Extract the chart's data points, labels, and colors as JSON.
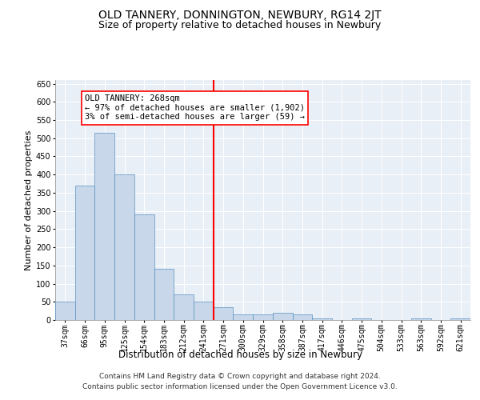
{
  "title": "OLD TANNERY, DONNINGTON, NEWBURY, RG14 2JT",
  "subtitle": "Size of property relative to detached houses in Newbury",
  "xlabel": "Distribution of detached houses by size in Newbury",
  "ylabel": "Number of detached properties",
  "bar_color": "#c8d8ea",
  "bar_edge_color": "#5a90c0",
  "categories": [
    "37sqm",
    "66sqm",
    "95sqm",
    "125sqm",
    "154sqm",
    "183sqm",
    "212sqm",
    "241sqm",
    "271sqm",
    "300sqm",
    "329sqm",
    "358sqm",
    "387sqm",
    "417sqm",
    "446sqm",
    "475sqm",
    "504sqm",
    "533sqm",
    "563sqm",
    "592sqm",
    "621sqm"
  ],
  "values": [
    50,
    370,
    515,
    400,
    290,
    140,
    70,
    50,
    35,
    15,
    15,
    20,
    15,
    5,
    0,
    5,
    0,
    0,
    5,
    0,
    5
  ],
  "property_bin_index": 8,
  "annotation_line1": "OLD TANNERY: 268sqm",
  "annotation_line2": "← 97% of detached houses are smaller (1,902)",
  "annotation_line3": "3% of semi-detached houses are larger (59) →",
  "vline_color": "red",
  "ylim": [
    0,
    660
  ],
  "yticks": [
    0,
    50,
    100,
    150,
    200,
    250,
    300,
    350,
    400,
    450,
    500,
    550,
    600,
    650
  ],
  "background_color": "#e8eff6",
  "grid_color": "#ffffff",
  "title_fontsize": 10,
  "subtitle_fontsize": 9,
  "ylabel_fontsize": 8,
  "xlabel_fontsize": 8.5,
  "tick_fontsize": 7,
  "annotation_fontsize": 7.5,
  "footnote_fontsize": 6.5,
  "footnote": "Contains HM Land Registry data © Crown copyright and database right 2024.\nContains public sector information licensed under the Open Government Licence v3.0."
}
